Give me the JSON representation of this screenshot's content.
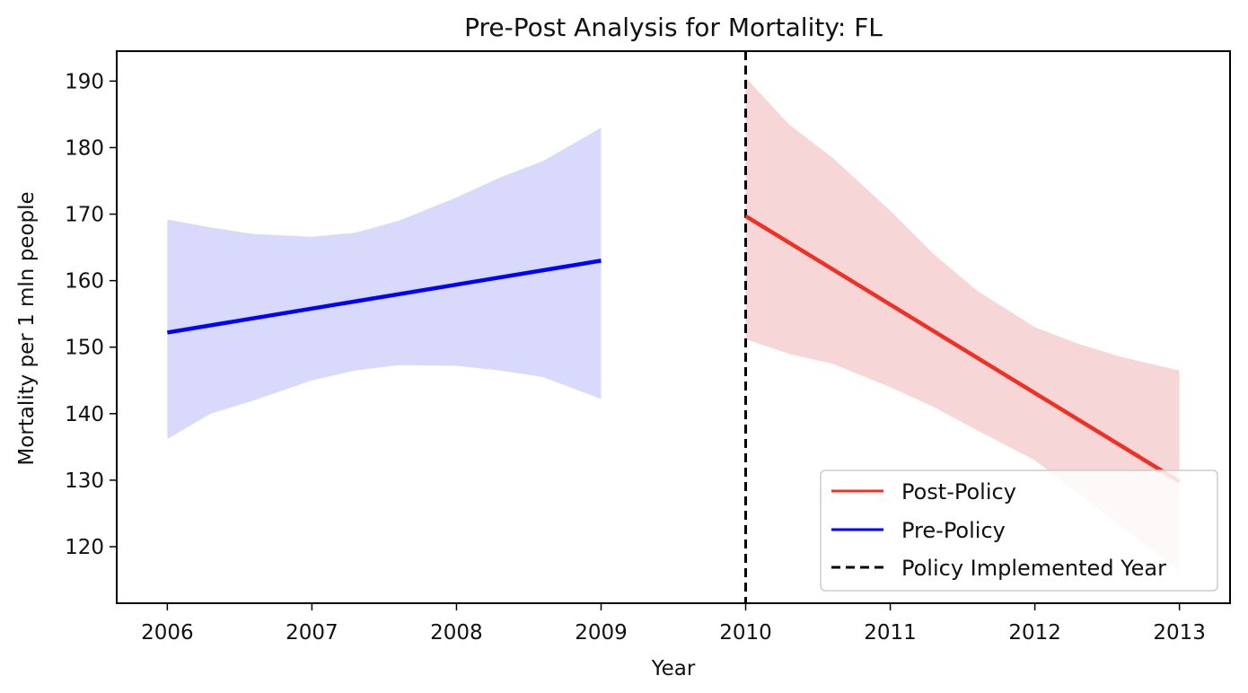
{
  "chart_data": {
    "type": "line",
    "title": "Pre-Post Analysis for Mortality: FL",
    "xlabel": "Year",
    "ylabel": "Mortality per 1 mln people",
    "xlim": [
      2005.65,
      2013.35
    ],
    "ylim": [
      111.5,
      194.5
    ],
    "x_ticks": [
      "2006",
      "2007",
      "2008",
      "2009",
      "2010",
      "2011",
      "2012",
      "2013"
    ],
    "y_ticks": [
      "120",
      "130",
      "140",
      "150",
      "160",
      "170",
      "180",
      "190"
    ],
    "grid": false,
    "legend_position": "lower-right",
    "series": [
      {
        "name": "Pre-Policy",
        "color": "#0000ff",
        "band_color": "#d9d9fb",
        "x": [
          2006,
          2009
        ],
        "y": [
          152.2,
          163.0
        ],
        "band_x": [
          2006,
          2006.3,
          2006.6,
          2007,
          2007.3,
          2007.6,
          2008,
          2008.3,
          2008.6,
          2009
        ],
        "band_upper": [
          169.2,
          168.0,
          167.0,
          166.6,
          167.2,
          169.0,
          172.5,
          175.5,
          178.0,
          183.0
        ],
        "band_lower": [
          136.2,
          140.0,
          142.0,
          145.0,
          146.5,
          147.3,
          147.2,
          146.5,
          145.5,
          142.2
        ]
      },
      {
        "name": "Post-Policy",
        "color": "#ee3124",
        "band_color": "#f7d6d8",
        "x": [
          2010,
          2013
        ],
        "y": [
          169.7,
          129.8
        ],
        "band_x": [
          2010,
          2010.3,
          2010.6,
          2011,
          2011.3,
          2011.6,
          2012,
          2012.3,
          2012.6,
          2013
        ],
        "band_upper": [
          190.5,
          183.5,
          178.5,
          170.5,
          164.0,
          158.5,
          153.0,
          150.5,
          148.5,
          146.5
        ],
        "band_lower": [
          151.2,
          149.0,
          147.5,
          144.0,
          141.0,
          137.5,
          133.0,
          128.0,
          123.0,
          116.5
        ]
      }
    ],
    "reference_lines": [
      {
        "name": "Policy Implemented Year",
        "x": 2010,
        "color": "#000000",
        "style": "dashed"
      }
    ],
    "legend": [
      {
        "label": "Post-Policy",
        "color": "#ee3124",
        "style": "solid"
      },
      {
        "label": "Pre-Policy",
        "color": "#0000ff",
        "style": "solid"
      },
      {
        "label": "Policy Implemented Year",
        "color": "#000000",
        "style": "dashed"
      }
    ]
  }
}
